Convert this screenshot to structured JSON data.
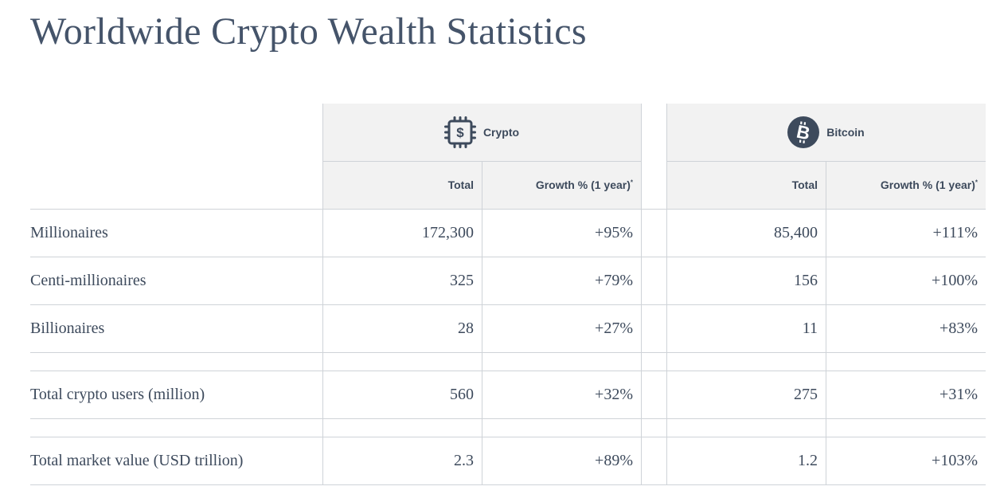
{
  "title": "Worldwide Crypto Wealth Statistics",
  "groups": {
    "crypto": {
      "label": "Crypto",
      "icon": "crypto-chip-dollar-icon"
    },
    "bitcoin": {
      "label": "Bitcoin",
      "icon": "bitcoin-icon"
    }
  },
  "columns": {
    "total": "Total",
    "growth": "Growth % (1 year)",
    "growth_note": "*"
  },
  "rows": [
    {
      "label": "Millionaires",
      "crypto_total": "172,300",
      "crypto_growth": "+95%",
      "btc_total": "85,400",
      "btc_growth": "+111%"
    },
    {
      "label": "Centi-millionaires",
      "crypto_total": "325",
      "crypto_growth": "+79%",
      "btc_total": "156",
      "btc_growth": "+100%"
    },
    {
      "label": "Billionaires",
      "crypto_total": "28",
      "crypto_growth": "+27%",
      "btc_total": "11",
      "btc_growth": "+83%"
    },
    {
      "label": "Total crypto users (million)",
      "crypto_total": "560",
      "crypto_growth": "+32%",
      "btc_total": "275",
      "btc_growth": "+31%"
    },
    {
      "label": "Total market value (USD trillion)",
      "crypto_total": "2.3",
      "crypto_growth": "+89%",
      "btc_total": "1.2",
      "btc_growth": "+103%"
    }
  ],
  "colors": {
    "text": "#3d4a5c",
    "header_bg": "#f2f2f2",
    "rule": "#cfd3d8",
    "bitcoin_badge": "#3d4a5c"
  }
}
